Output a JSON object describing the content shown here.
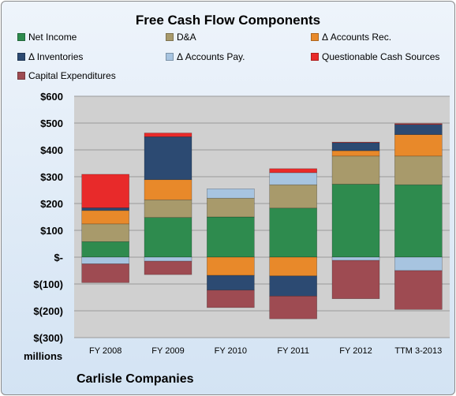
{
  "chart_data": {
    "type": "bar",
    "stacked": true,
    "title": "Free Cash Flow Components",
    "units_label": "millions",
    "company": "Carlisle Companies",
    "categories": [
      "FY 2008",
      "FY 2009",
      "FY 2010",
      "FY 2011",
      "FY 2012",
      "TTM 3-2013"
    ],
    "ylim": [
      -300,
      600
    ],
    "yticks": [
      600,
      500,
      400,
      300,
      200,
      100,
      0,
      -100,
      -200,
      -300
    ],
    "ytick_labels": [
      "$600",
      "$500",
      "$400",
      "$300",
      "$200",
      "$100",
      "$-",
      "$(100)",
      "$(200)",
      "$(300)"
    ],
    "grid": true,
    "legend_position": "top",
    "series": [
      {
        "name": "Net Income",
        "color": "#2e8b4e",
        "values": [
          58,
          148,
          150,
          183,
          272,
          270
        ]
      },
      {
        "name": "D&A",
        "color": "#a89a6b",
        "values": [
          66,
          66,
          70,
          87,
          105,
          107
        ]
      },
      {
        "name": "Δ Accounts Rec.",
        "color": "#e8892a",
        "values": [
          50,
          75,
          -68,
          -70,
          20,
          80
        ]
      },
      {
        "name": "Δ Inventories",
        "color": "#2c4a72",
        "values": [
          10,
          160,
          -55,
          -75,
          30,
          38
        ]
      },
      {
        "name": "Δ Accounts Pay.",
        "color": "#a7c4e0",
        "values": [
          -25,
          -15,
          35,
          45,
          -12,
          -50
        ]
      },
      {
        "name": "Questionable Cash Sources",
        "color": "#e82a2a",
        "values": [
          125,
          14,
          0,
          15,
          2,
          3
        ]
      },
      {
        "name": "Capital Expenditures",
        "color": "#9e4b52",
        "values": [
          -70,
          -50,
          -65,
          -85,
          -143,
          -145
        ]
      }
    ]
  }
}
